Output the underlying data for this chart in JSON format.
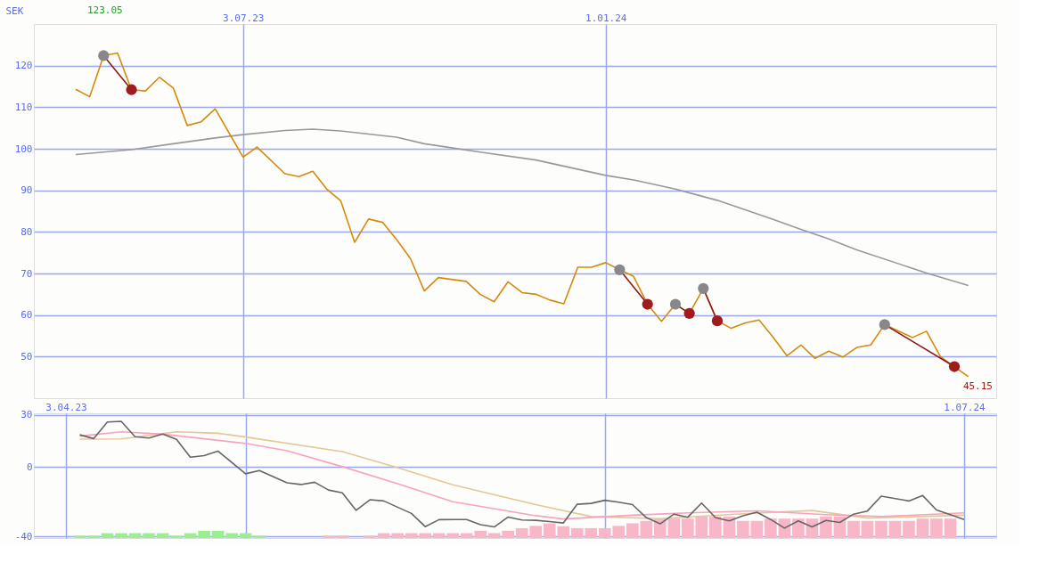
{
  "chart_data": [
    {
      "type": "line",
      "ylabel": "SEK",
      "annotations": [
        "123.05",
        "45.15"
      ],
      "xlim": [
        "2023-03-20",
        "2024-07-15"
      ],
      "xticks": [
        {
          "value": "2023-07-03",
          "label": "3.07.23"
        },
        {
          "value": "2024-01-01",
          "label": "1.01.24"
        }
      ],
      "ylim": [
        40,
        130
      ],
      "yticks": [
        50,
        60,
        70,
        80,
        90,
        100,
        110,
        120
      ],
      "grid": true,
      "marker": "none",
      "line_style": "solid",
      "series": [
        {
          "color": "#999999",
          "x": [
            "2023-04-10",
            "2023-05-08",
            "2023-05-29",
            "2023-06-19",
            "2023-07-03",
            "2023-07-24",
            "2023-08-07",
            "2023-08-21",
            "2023-09-18",
            "2023-10-02",
            "2023-10-30",
            "2023-11-27",
            "2024-01-01",
            "2024-01-15",
            "2024-02-05",
            "2024-02-26",
            "2024-03-25",
            "2024-04-08",
            "2024-04-22",
            "2024-05-06",
            "2024-06-10",
            "2024-07-01"
          ],
          "values": [
            98.6,
            99.8,
            101.2,
            102.6,
            103.4,
            104.4,
            104.7,
            104.3,
            102.8,
            101.2,
            99.2,
            97.3,
            93.6,
            92.5,
            90.3,
            87.6,
            83.0,
            80.6,
            78.3,
            75.7,
            70.1,
            67.1
          ]
        },
        {
          "color": "#d68a0c",
          "x": [
            "2023-04-10",
            "2023-04-17",
            "2023-04-24",
            "2023-05-01",
            "2023-05-08",
            "2023-05-15",
            "2023-05-22",
            "2023-05-29",
            "2023-06-05",
            "2023-06-12",
            "2023-06-19",
            "2023-07-03",
            "2023-07-10",
            "2023-07-24",
            "2023-07-31",
            "2023-08-07",
            "2023-08-14",
            "2023-08-21",
            "2023-08-28",
            "2023-09-04",
            "2023-09-11",
            "2023-09-18",
            "2023-09-25",
            "2023-10-02",
            "2023-10-09",
            "2023-10-23",
            "2023-10-30",
            "2023-11-06",
            "2023-11-13",
            "2023-11-20",
            "2023-11-27",
            "2023-12-04",
            "2023-12-11",
            "2023-12-18",
            "2023-12-25",
            "2024-01-01",
            "2024-01-08",
            "2024-01-15",
            "2024-01-22",
            "2024-01-29",
            "2024-02-05",
            "2024-02-12",
            "2024-02-19",
            "2024-02-26",
            "2024-03-04",
            "2024-03-11",
            "2024-03-18",
            "2024-03-25",
            "2024-04-01",
            "2024-04-08",
            "2024-04-15",
            "2024-04-22",
            "2024-04-29",
            "2024-05-06",
            "2024-05-13",
            "2024-05-20",
            "2024-06-03",
            "2024-06-10",
            "2024-06-17",
            "2024-06-24",
            "2024-07-01"
          ],
          "values": [
            114.3,
            112.5,
            122.4,
            123.05,
            114.2,
            113.9,
            117.2,
            114.6,
            105.6,
            106.5,
            109.6,
            98.0,
            100.4,
            94.0,
            93.3,
            94.6,
            90.3,
            87.5,
            77.5,
            83.1,
            82.3,
            78.2,
            73.6,
            65.8,
            69.0,
            68.1,
            65.0,
            63.2,
            68.0,
            65.4,
            65.0,
            63.6,
            62.7,
            71.5,
            71.5,
            72.6,
            70.9,
            69.3,
            62.6,
            58.5,
            62.6,
            60.4,
            66.4,
            58.6,
            56.8,
            58.1,
            58.8,
            54.7,
            50.2,
            52.8,
            49.6,
            51.3,
            49.9,
            52.2,
            52.8,
            57.7,
            54.6,
            56.1,
            50.0,
            47.6,
            45.15
          ]
        },
        {
          "color": "#8b1a1a",
          "x": [
            "2023-04-24",
            "2023-05-08"
          ],
          "values": [
            122.4,
            114.2
          ]
        },
        {
          "color": "#8b1a1a",
          "x": [
            "2024-01-08",
            "2024-01-22"
          ],
          "values": [
            70.9,
            62.6
          ]
        },
        {
          "color": "#8b1a1a",
          "x": [
            "2024-02-05",
            "2024-02-12"
          ],
          "values": [
            62.6,
            60.4
          ]
        },
        {
          "color": "#8b1a1a",
          "x": [
            "2024-02-19",
            "2024-02-26"
          ],
          "values": [
            66.4,
            58.6
          ]
        },
        {
          "color": "#8b1a1a",
          "x": [
            "2024-05-20",
            "2024-06-24"
          ],
          "values": [
            57.7,
            47.6
          ]
        },
        {
          "type": "scatter",
          "marker": "circle",
          "color": "#888888",
          "x": [
            "2023-04-24",
            "2024-01-08",
            "2024-02-05",
            "2024-02-19",
            "2024-05-20"
          ],
          "values": [
            122.4,
            70.9,
            62.6,
            66.4,
            57.7
          ]
        },
        {
          "type": "scatter",
          "marker": "circle",
          "color": "#a01c1c",
          "x": [
            "2023-05-08",
            "2024-01-22",
            "2024-02-12",
            "2024-02-26",
            "2024-06-24"
          ],
          "values": [
            114.2,
            62.6,
            60.4,
            58.6,
            47.6
          ]
        }
      ]
    },
    {
      "type": "line",
      "xlim": [
        "2023-03-20",
        "2024-07-15"
      ],
      "xticks": [
        {
          "value": "2023-04-03",
          "label": "3.04.23"
        },
        {
          "value": "2023-07-03",
          "label": null
        },
        {
          "value": "2024-01-01",
          "label": null
        },
        {
          "value": "2024-07-01",
          "label": "1.07.24"
        }
      ],
      "ylim": [
        -41,
        31
      ],
      "yticks": [
        -40,
        0,
        30
      ],
      "grid": true,
      "marker": "none",
      "line_style": "solid",
      "series": [
        {
          "type": "bar",
          "x": [
            "2023-04-10",
            "2023-04-17",
            "2023-04-24",
            "2023-05-01",
            "2023-05-08",
            "2023-05-15",
            "2023-05-22",
            "2023-05-29",
            "2023-06-05",
            "2023-06-12",
            "2023-06-19",
            "2023-06-26",
            "2023-07-03",
            "2023-07-10",
            "2023-08-14",
            "2023-08-21",
            "2023-09-04",
            "2023-09-11",
            "2023-09-18",
            "2023-09-25",
            "2023-10-02",
            "2023-10-09",
            "2023-10-16",
            "2023-10-23",
            "2023-10-30",
            "2023-11-06",
            "2023-11-13",
            "2023-11-20",
            "2023-11-27",
            "2023-12-04",
            "2023-12-11",
            "2023-12-18",
            "2023-12-25",
            "2024-01-01",
            "2024-01-08",
            "2024-01-15",
            "2024-01-22",
            "2024-01-29",
            "2024-02-05",
            "2024-02-12",
            "2024-02-19",
            "2024-02-26",
            "2024-03-04",
            "2024-03-11",
            "2024-03-18",
            "2024-03-25",
            "2024-04-01",
            "2024-04-08",
            "2024-04-15",
            "2024-04-22",
            "2024-04-29",
            "2024-05-06",
            "2024-05-13",
            "2024-05-20",
            "2024-05-27",
            "2024-06-03",
            "2024-06-10",
            "2024-06-17",
            "2024-06-24"
          ],
          "base": [
            -41,
            -41,
            -41,
            -41,
            -41,
            -41,
            -41,
            -41,
            -41,
            -41,
            -41,
            -41,
            -41,
            -41,
            -41,
            -41,
            -41,
            -41,
            -41,
            -41,
            -41,
            -41,
            -41,
            -41,
            -41,
            -41,
            -41,
            -41,
            -41,
            -41,
            -41,
            -41,
            -41,
            -41,
            -41,
            -41,
            -41,
            -41,
            -41,
            -41,
            -41,
            -41,
            -41,
            -41,
            -41,
            -41,
            -41,
            -41,
            -41,
            -41,
            -41,
            -41,
            -41,
            -41,
            -41,
            -41,
            -41,
            -41,
            -41
          ],
          "values": [
            1.4,
            1.4,
            2.8,
            2.8,
            2.8,
            2.8,
            2.8,
            1.4,
            2.8,
            4.2,
            4.2,
            2.8,
            2.8,
            1.4,
            1.4,
            1.4,
            1.4,
            2.8,
            2.8,
            2.8,
            2.8,
            2.8,
            2.8,
            2.8,
            4.2,
            2.8,
            4.2,
            5.7,
            7.0,
            8.5,
            6.8,
            5.7,
            5.7,
            5.7,
            7.0,
            8.5,
            9.9,
            11.2,
            11.2,
            11.2,
            12.4,
            12.4,
            12.4,
            9.9,
            9.9,
            11.2,
            11.2,
            11.2,
            11.2,
            12.4,
            12.4,
            9.9,
            9.9,
            9.9,
            9.9,
            9.9,
            11.2,
            11.2,
            11.2
          ],
          "colors": [
            "#98f090",
            "#98f090",
            "#98f090",
            "#98f090",
            "#98f090",
            "#98f090",
            "#98f090",
            "#98f090",
            "#98f090",
            "#98f090",
            "#98f090",
            "#98f090",
            "#98f090",
            "#98f090",
            "#f9b6c8",
            "#f9b6c8",
            "#f9b6c8",
            "#f9b6c8",
            "#f9b6c8",
            "#f9b6c8",
            "#f9b6c8",
            "#f9b6c8",
            "#f9b6c8",
            "#f9b6c8",
            "#f9b6c8",
            "#f9b6c8",
            "#f9b6c8",
            "#f9b6c8",
            "#f9b6c8",
            "#f9b6c8",
            "#f9b6c8",
            "#f9b6c8",
            "#f9b6c8",
            "#f9b6c8",
            "#f9b6c8",
            "#f9b6c8",
            "#f9b6c8",
            "#f9b6c8",
            "#f9b6c8",
            "#f9b6c8",
            "#f9b6c8",
            "#f9b6c8",
            "#f9b6c8",
            "#f9b6c8",
            "#f9b6c8",
            "#f9b6c8",
            "#f9b6c8",
            "#f9b6c8",
            "#f9b6c8",
            "#f9b6c8",
            "#f9b6c8",
            "#f9b6c8",
            "#f9b6c8",
            "#f9b6c8",
            "#f9b6c8",
            "#f9b6c8",
            "#f9b6c8",
            "#f9b6c8",
            "#f9b6c8"
          ]
        },
        {
          "color": "#e3c896",
          "x": [
            "2023-04-10",
            "2023-05-01",
            "2023-05-29",
            "2023-06-19",
            "2023-07-03",
            "2023-08-21",
            "2023-09-18",
            "2023-10-16",
            "2023-11-27",
            "2023-12-25",
            "2024-01-29",
            "2024-03-11",
            "2024-04-15",
            "2024-05-13",
            "2024-07-01"
          ],
          "values": [
            16.1,
            16.2,
            20.3,
            19.5,
            17.3,
            8.9,
            -0.4,
            -10.3,
            -21.7,
            -28.6,
            -29.8,
            -27.0,
            -25.1,
            -29.5,
            -27.8
          ]
        },
        {
          "color": "#f7a3bd",
          "x": [
            "2023-04-10",
            "2023-05-01",
            "2023-05-22",
            "2023-07-03",
            "2023-07-24",
            "2023-08-21",
            "2023-09-18",
            "2023-10-16",
            "2023-11-27",
            "2023-12-11",
            "2024-01-15",
            "2024-02-12",
            "2024-03-18",
            "2024-04-22",
            "2024-05-20",
            "2024-07-01"
          ],
          "values": [
            17.8,
            20.3,
            19.0,
            13.6,
            9.4,
            0.2,
            -9.6,
            -20.0,
            -28.1,
            -30.0,
            -27.8,
            -26.5,
            -25.3,
            -27.5,
            -28.6,
            -26.5
          ]
        },
        {
          "color": "#666666",
          "x": [
            "2023-04-10",
            "2023-04-17",
            "2023-04-24",
            "2023-05-01",
            "2023-05-08",
            "2023-05-15",
            "2023-05-22",
            "2023-05-29",
            "2023-06-05",
            "2023-06-12",
            "2023-06-19",
            "2023-07-03",
            "2023-07-10",
            "2023-07-24",
            "2023-07-31",
            "2023-08-07",
            "2023-08-14",
            "2023-08-21",
            "2023-08-28",
            "2023-09-04",
            "2023-09-11",
            "2023-09-18",
            "2023-09-25",
            "2023-10-02",
            "2023-10-09",
            "2023-10-23",
            "2023-10-30",
            "2023-11-06",
            "2023-11-13",
            "2023-11-20",
            "2023-11-27",
            "2023-12-04",
            "2023-12-11",
            "2023-12-18",
            "2023-12-25",
            "2024-01-01",
            "2024-01-08",
            "2024-01-15",
            "2024-01-22",
            "2024-01-29",
            "2024-02-05",
            "2024-02-12",
            "2024-02-19",
            "2024-02-26",
            "2024-03-04",
            "2024-03-11",
            "2024-03-18",
            "2024-03-25",
            "2024-04-01",
            "2024-04-08",
            "2024-04-15",
            "2024-04-22",
            "2024-04-29",
            "2024-05-06",
            "2024-05-13",
            "2024-05-20",
            "2024-06-03",
            "2024-06-10",
            "2024-06-17",
            "2024-06-24",
            "2024-07-01"
          ],
          "values": [
            18.6,
            16.4,
            26.0,
            26.4,
            17.5,
            16.7,
            19.0,
            16.0,
            5.7,
            6.6,
            9.2,
            -3.9,
            -2.0,
            -9.1,
            -10.1,
            -8.8,
            -13.3,
            -14.9,
            -25.0,
            -18.9,
            -19.6,
            -23.2,
            -26.8,
            -34.4,
            -30.4,
            -30.3,
            -33.3,
            -34.6,
            -28.9,
            -30.6,
            -30.8,
            -31.5,
            -32.3,
            -21.5,
            -21.0,
            -19.2,
            -20.3,
            -21.7,
            -29.2,
            -32.8,
            -27.2,
            -29.0,
            -20.8,
            -29.2,
            -31.1,
            -28.1,
            -26.1,
            -30.3,
            -35.3,
            -31.1,
            -34.6,
            -30.8,
            -32.0,
            -27.2,
            -25.4,
            -16.8,
            -19.6,
            -16.5,
            -24.8,
            -27.5,
            -30.3
          ]
        }
      ]
    }
  ]
}
